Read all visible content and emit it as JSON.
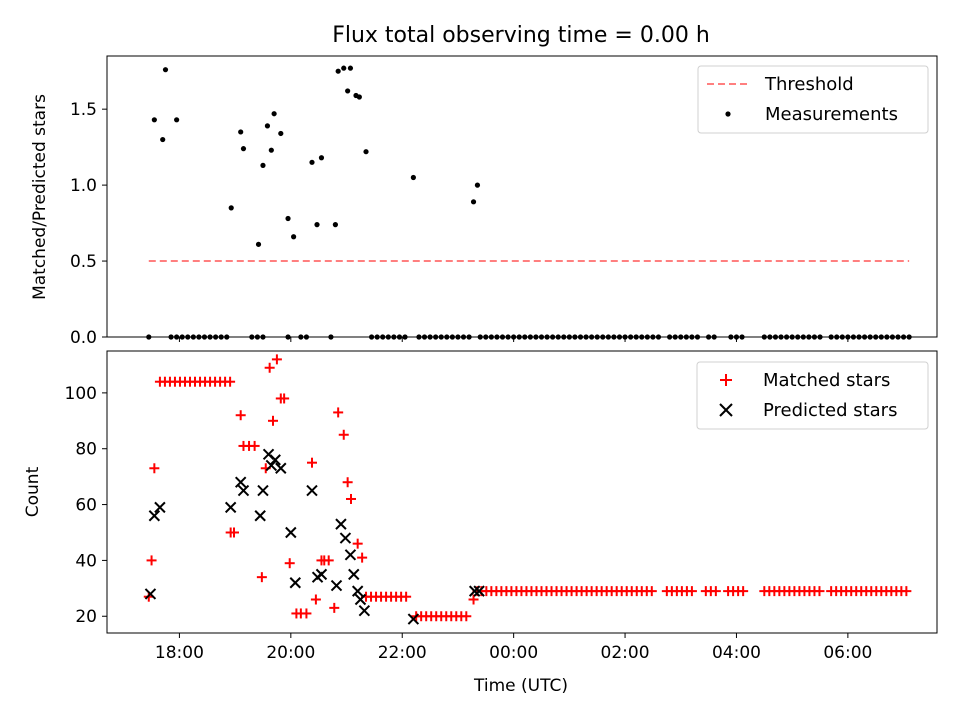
{
  "title": "Flux total observing time = 0.00 h",
  "chart_data": [
    {
      "type": "scatter",
      "panel": "top",
      "ylabel": "Matched/Predicted stars",
      "xlabel": "",
      "xlim_hours": [
        16.7,
        31.6
      ],
      "ylim": [
        0,
        1.85
      ],
      "yticks": [
        0.0,
        0.5,
        1.0,
        1.5
      ],
      "ytick_labels": [
        "0.0",
        "0.5",
        "1.0",
        "1.5"
      ],
      "legend_position": "upper right",
      "threshold": {
        "name": "Threshold",
        "value": 0.5,
        "x_range_hours": [
          17.45,
          31.1
        ],
        "color": "#ff7f7f"
      },
      "measurements": {
        "name": "Measurements",
        "color": "#000000",
        "x_hours": [
          17.55,
          17.7,
          17.75,
          17.95,
          18.93,
          19.1,
          19.15,
          19.42,
          19.5,
          19.58,
          19.65,
          19.7,
          19.82,
          19.95,
          20.05,
          20.38,
          20.47,
          20.55,
          20.8,
          20.85,
          20.95,
          21.02,
          21.07,
          21.17,
          21.23,
          21.35,
          22.2,
          23.28,
          23.35
        ],
        "y": [
          1.43,
          1.3,
          1.76,
          1.43,
          0.85,
          1.35,
          1.24,
          0.61,
          1.13,
          1.39,
          1.23,
          1.47,
          1.34,
          0.78,
          0.66,
          1.15,
          0.74,
          1.18,
          0.74,
          1.75,
          1.77,
          1.62,
          1.77,
          1.59,
          1.58,
          1.22,
          1.05,
          0.89,
          1.0
        ],
        "zero_runs_hours": [
          [
            17.45,
            17.45
          ],
          [
            17.85,
            18.92
          ],
          [
            19.3,
            19.5
          ],
          [
            19.95,
            19.95
          ],
          [
            20.18,
            20.3
          ],
          [
            20.72,
            20.78
          ],
          [
            21.45,
            22.1
          ],
          [
            22.3,
            23.2
          ],
          [
            23.4,
            26.6
          ],
          [
            26.8,
            27.3
          ],
          [
            27.5,
            27.6
          ],
          [
            27.9,
            28.15
          ],
          [
            28.5,
            29.5
          ],
          [
            29.7,
            31.1
          ]
        ]
      }
    },
    {
      "type": "scatter",
      "panel": "bottom",
      "xlabel": "Time (UTC)",
      "ylabel": "Count",
      "xlim_hours": [
        16.7,
        31.6
      ],
      "ylim": [
        14,
        115
      ],
      "yticks": [
        20,
        40,
        60,
        80,
        100
      ],
      "ytick_labels": [
        "20",
        "40",
        "60",
        "80",
        "100"
      ],
      "xticks_hours": [
        18,
        20,
        22,
        24,
        26,
        28,
        30
      ],
      "xtick_labels": [
        "18:00",
        "20:00",
        "22:00",
        "00:00",
        "02:00",
        "04:00",
        "06:00"
      ],
      "legend_position": "upper right",
      "matched": {
        "name": "Matched stars",
        "color": "#ff0000",
        "x_hours": [
          17.45,
          17.5,
          17.55,
          18.92,
          18.98,
          19.1,
          19.15,
          19.25,
          19.35,
          19.48,
          19.55,
          19.62,
          19.68,
          19.75,
          19.82,
          19.88,
          19.98,
          20.1,
          20.18,
          20.28,
          20.38,
          20.45,
          20.55,
          20.6,
          20.68,
          20.78,
          20.85,
          20.95,
          21.02,
          21.08,
          21.2,
          21.28,
          23.28,
          23.35
        ],
        "y": [
          27,
          40,
          73,
          50,
          50,
          92,
          81,
          81,
          81,
          34,
          73,
          109,
          90,
          112,
          98,
          98,
          39,
          21,
          21,
          21,
          75,
          26,
          40,
          40,
          40,
          23,
          93,
          85,
          68,
          62,
          46,
          41,
          26,
          29
        ],
        "runs": [
          {
            "x_from": 17.65,
            "x_to": 18.92,
            "y": 104
          },
          {
            "x_from": 21.35,
            "x_to": 22.15,
            "y": 27
          },
          {
            "x_from": 22.25,
            "x_to": 23.15,
            "y": 20
          },
          {
            "x_from": 23.42,
            "x_to": 26.55,
            "y": 29
          },
          {
            "x_from": 26.75,
            "x_to": 27.25,
            "y": 29
          },
          {
            "x_from": 27.45,
            "x_to": 27.65,
            "y": 29
          },
          {
            "x_from": 27.85,
            "x_to": 28.2,
            "y": 29
          },
          {
            "x_from": 28.5,
            "x_to": 29.5,
            "y": 29
          },
          {
            "x_from": 29.7,
            "x_to": 31.1,
            "y": 29
          }
        ]
      },
      "predicted": {
        "name": "Predicted stars",
        "color": "#000000",
        "x_hours": [
          17.48,
          17.55,
          17.65,
          18.92,
          19.1,
          19.15,
          19.45,
          19.5,
          19.6,
          19.65,
          19.72,
          19.82,
          20.0,
          20.08,
          20.38,
          20.48,
          20.55,
          20.82,
          20.9,
          20.98,
          21.07,
          21.13,
          21.2,
          21.25,
          21.32,
          22.2,
          23.3,
          23.38
        ],
        "y": [
          28,
          56,
          59,
          59,
          68,
          65,
          56,
          65,
          78,
          74,
          76,
          73,
          50,
          32,
          65,
          34,
          35,
          31,
          53,
          48,
          42,
          35,
          29,
          26,
          22,
          19,
          29,
          29
        ]
      }
    }
  ]
}
